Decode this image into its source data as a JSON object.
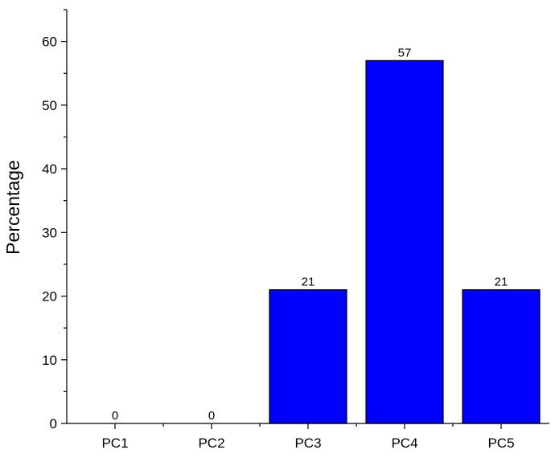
{
  "chart_data": {
    "type": "bar",
    "title": "",
    "xlabel": "",
    "ylabel": "Percentage",
    "categories": [
      "PC1",
      "PC2",
      "PC3",
      "PC4",
      "PC5"
    ],
    "values": [
      0,
      0,
      21,
      57,
      21
    ],
    "data_labels": [
      "0",
      "0",
      "21",
      "57",
      "21"
    ],
    "ylim": [
      0,
      65
    ],
    "yticks": [
      0,
      10,
      20,
      30,
      40,
      50,
      60
    ],
    "bar_color": "#0000ff",
    "grid": false,
    "legend": "none"
  }
}
